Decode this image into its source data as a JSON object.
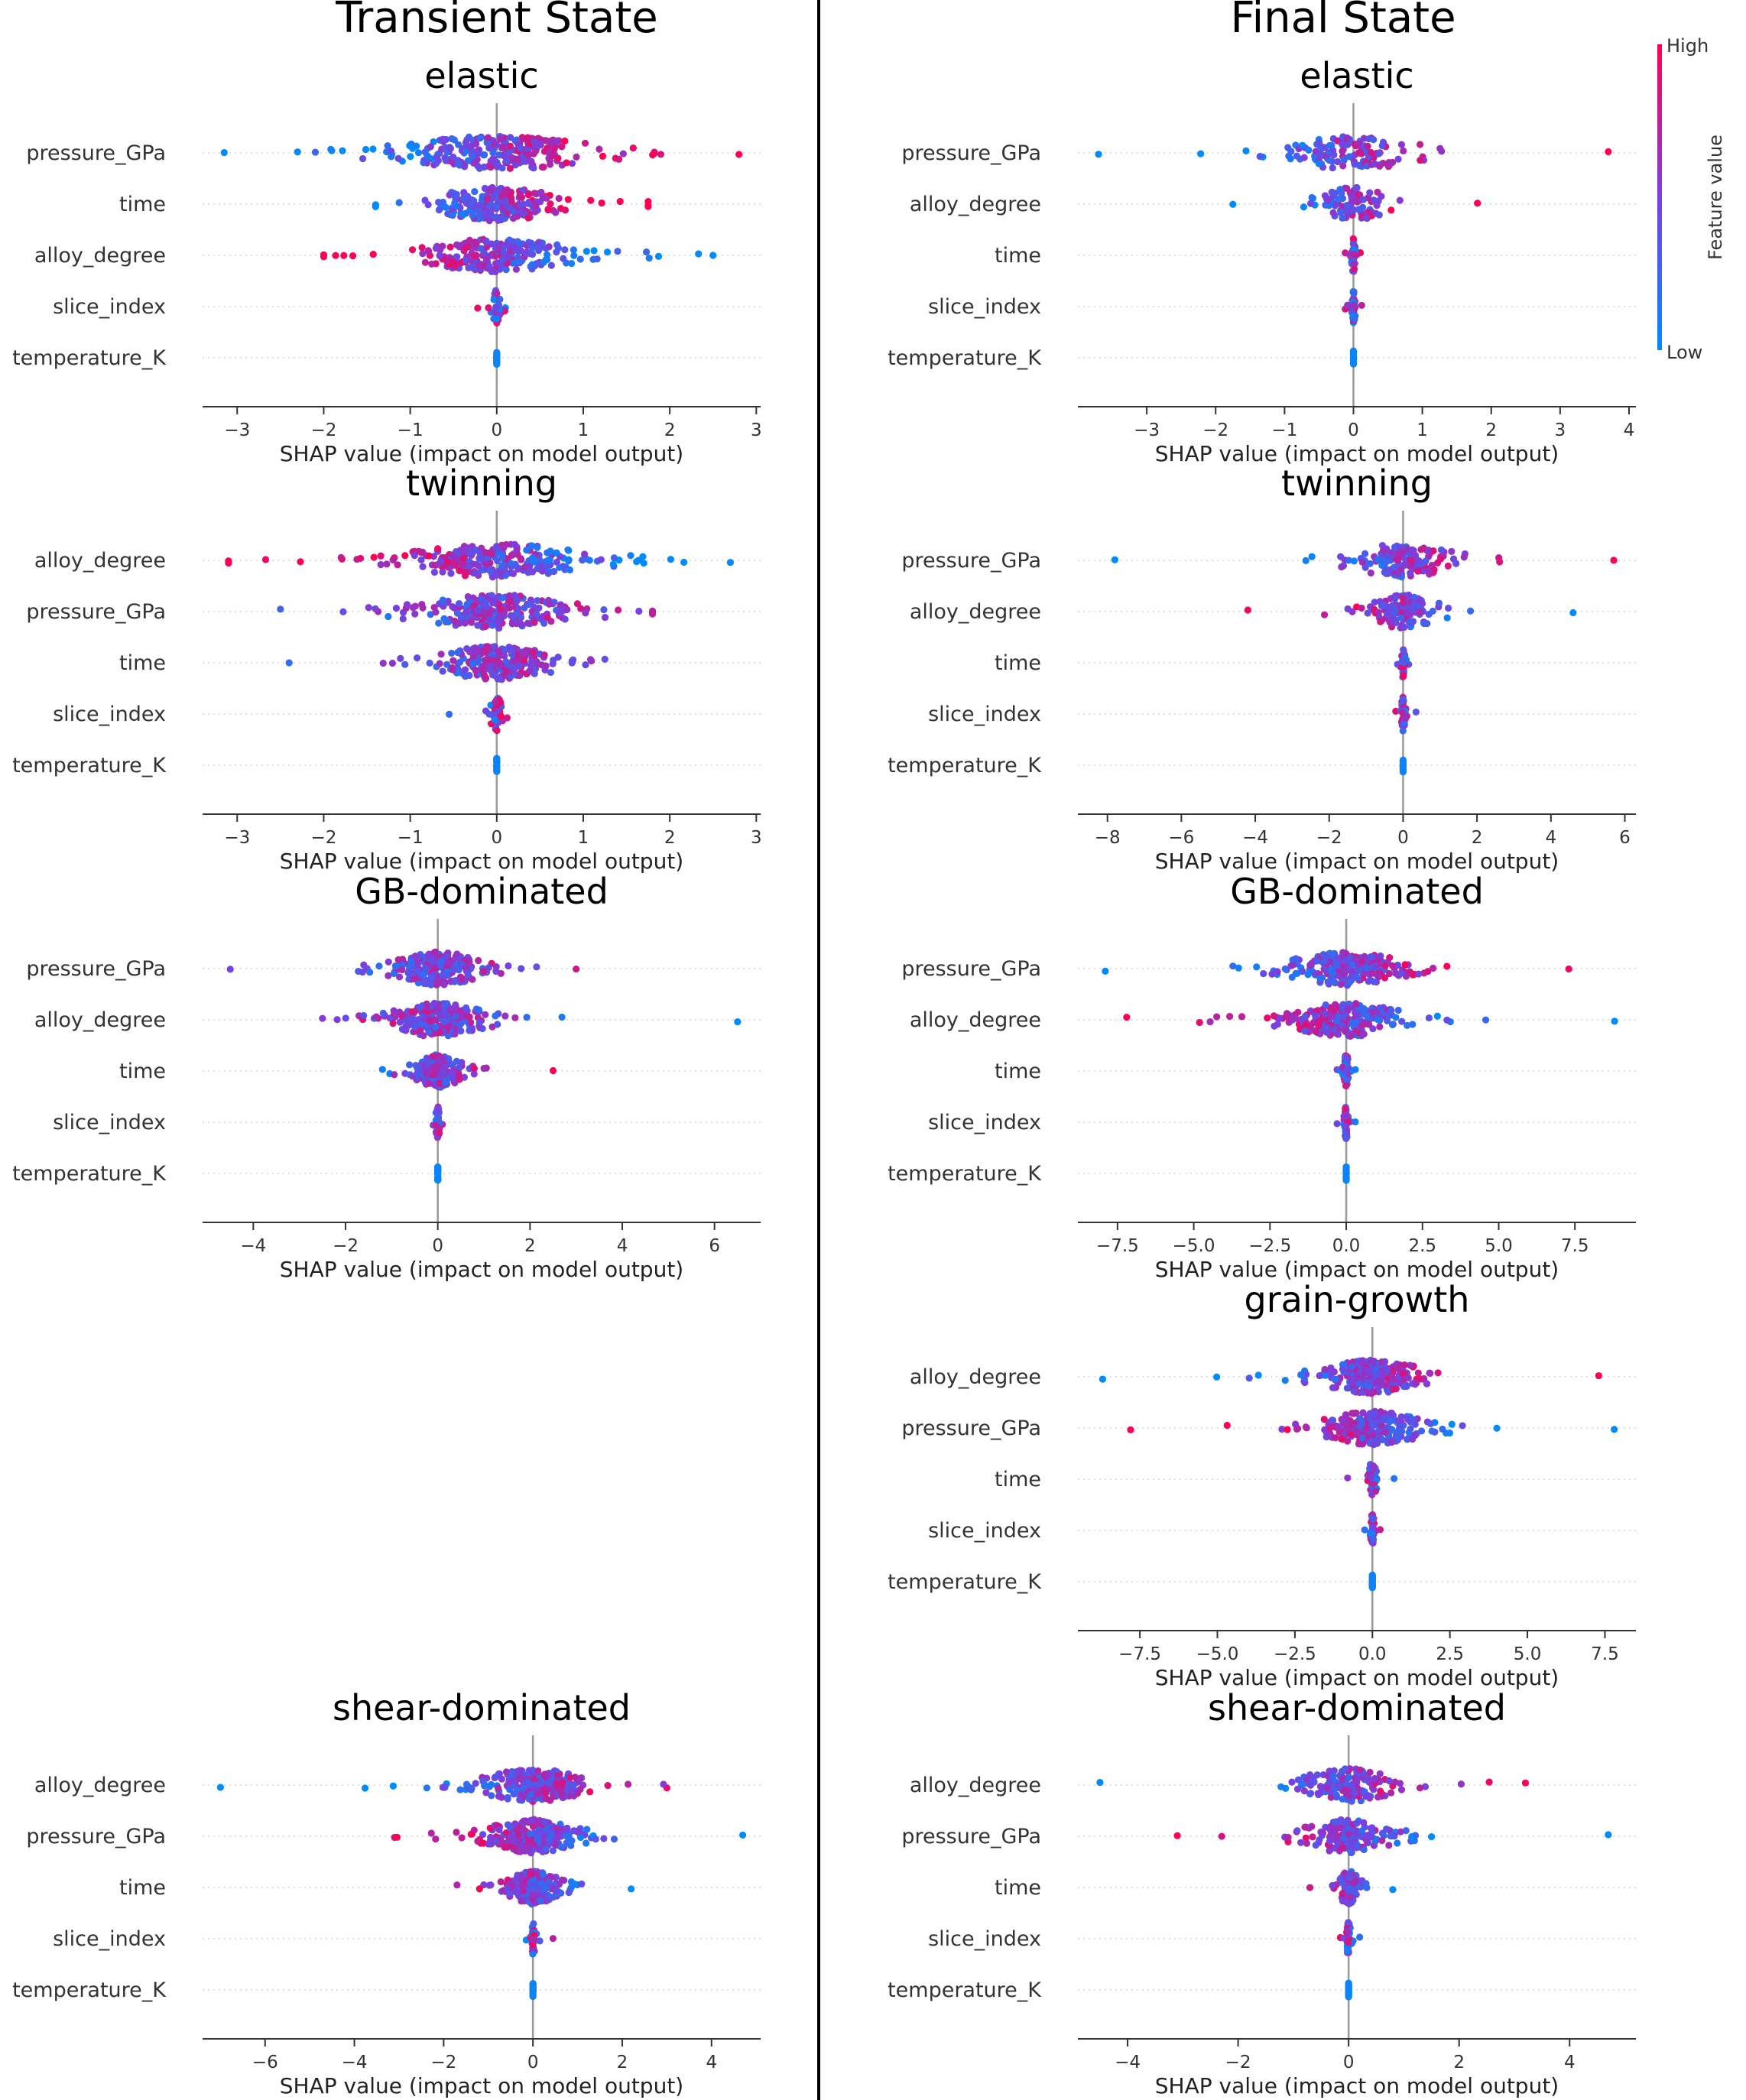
{
  "figure": {
    "column_titles": [
      "Transient State",
      "Final State"
    ],
    "colorbar": {
      "high_label": "High",
      "low_label": "Low",
      "title": "Feature value",
      "high_color": "#ff0052",
      "mid_color": "#7b3fe0",
      "low_color": "#008bfb"
    },
    "axis_xlabel": "SHAP value (impact on model output)"
  },
  "chart_data": [
    {
      "type": "scatter",
      "subtype": "shap_beeswarm",
      "column": "Transient State",
      "title": "elastic",
      "xlabel": "SHAP value (impact on model output)",
      "xlim": [
        -3.4,
        3.05
      ],
      "xticks": [
        -3,
        -2,
        -1,
        0,
        1,
        2,
        3
      ],
      "xtick_labels": [
        "−3",
        "−2",
        "−1",
        "0",
        "1",
        "2",
        "3"
      ],
      "features": [
        {
          "name": "pressure_GPa",
          "min": -3.15,
          "max": 2.8,
          "spread": 1.1,
          "bias": 0.5,
          "n": 260
        },
        {
          "name": "time",
          "min": -1.4,
          "max": 1.75,
          "spread": 0.7,
          "bias": 0.45,
          "n": 220
        },
        {
          "name": "alloy_degree",
          "min": -2.0,
          "max": 2.5,
          "spread": 0.8,
          "bias": -0.5,
          "n": 230
        },
        {
          "name": "slice_index",
          "min": -0.22,
          "max": 0.1,
          "spread": 0.06,
          "bias": 0,
          "n": 40
        },
        {
          "name": "temperature_K",
          "min": 0,
          "max": 0,
          "spread": 0,
          "bias": 0,
          "n": 30
        }
      ]
    },
    {
      "type": "scatter",
      "subtype": "shap_beeswarm",
      "column": "Transient State",
      "title": "twinning",
      "xlabel": "SHAP value (impact on model output)",
      "xlim": [
        -3.4,
        3.05
      ],
      "xticks": [
        -3,
        -2,
        -1,
        0,
        1,
        2,
        3
      ],
      "xtick_labels": [
        "−3",
        "−2",
        "−1",
        "0",
        "1",
        "2",
        "3"
      ],
      "features": [
        {
          "name": "alloy_degree",
          "min": -3.1,
          "max": 2.7,
          "spread": 1.0,
          "bias": -0.45,
          "n": 260
        },
        {
          "name": "pressure_GPa",
          "min": -2.5,
          "max": 1.8,
          "spread": 0.9,
          "bias": 0.1,
          "n": 230
        },
        {
          "name": "time",
          "min": -2.4,
          "max": 1.25,
          "spread": 0.65,
          "bias": 0.2,
          "n": 220
        },
        {
          "name": "slice_index",
          "min": -0.55,
          "max": 0.12,
          "spread": 0.07,
          "bias": 0,
          "n": 40
        },
        {
          "name": "temperature_K",
          "min": 0,
          "max": 0,
          "spread": 0,
          "bias": 0,
          "n": 30
        }
      ]
    },
    {
      "type": "scatter",
      "subtype": "shap_beeswarm",
      "column": "Transient State",
      "title": "GB-dominated",
      "xlabel": "SHAP value (impact on model output)",
      "xlim": [
        -5.1,
        7.0
      ],
      "xticks": [
        -4,
        -2,
        0,
        2,
        4,
        6
      ],
      "xtick_labels": [
        "−4",
        "−2",
        "0",
        "2",
        "4",
        "6"
      ],
      "features": [
        {
          "name": "pressure_GPa",
          "min": -4.5,
          "max": 3.0,
          "spread": 0.9,
          "bias": 0.1,
          "n": 240
        },
        {
          "name": "alloy_degree",
          "min": -2.5,
          "max": 6.5,
          "spread": 1.0,
          "bias": -0.3,
          "n": 240
        },
        {
          "name": "time",
          "min": -1.2,
          "max": 2.5,
          "spread": 0.5,
          "bias": 0.2,
          "n": 200
        },
        {
          "name": "slice_index",
          "min": -0.1,
          "max": 0.1,
          "spread": 0.04,
          "bias": 0,
          "n": 40
        },
        {
          "name": "temperature_K",
          "min": 0,
          "max": 0,
          "spread": 0,
          "bias": 0,
          "n": 30
        }
      ]
    },
    {
      "type": "scatter",
      "subtype": "shap_beeswarm",
      "column": "Transient State",
      "title": "shear-dominated",
      "xlabel": "SHAP value (impact on model output)",
      "xlim": [
        -7.4,
        5.1
      ],
      "xticks": [
        -6,
        -4,
        -2,
        0,
        2,
        4
      ],
      "xtick_labels": [
        "−6",
        "−4",
        "−2",
        "0",
        "2",
        "4"
      ],
      "features": [
        {
          "name": "alloy_degree",
          "min": -7.0,
          "max": 3.0,
          "spread": 1.1,
          "bias": 0.5,
          "n": 250
        },
        {
          "name": "pressure_GPa",
          "min": -3.1,
          "max": 4.7,
          "spread": 1.0,
          "bias": -0.5,
          "n": 240
        },
        {
          "name": "time",
          "min": -1.7,
          "max": 2.2,
          "spread": 0.6,
          "bias": -0.3,
          "n": 210
        },
        {
          "name": "slice_index",
          "min": -0.15,
          "max": 0.45,
          "spread": 0.05,
          "bias": 0,
          "n": 40
        },
        {
          "name": "temperature_K",
          "min": 0,
          "max": 0,
          "spread": 0,
          "bias": 0,
          "n": 30
        }
      ]
    },
    {
      "type": "scatter",
      "subtype": "shap_beeswarm",
      "column": "Final State",
      "title": "elastic",
      "xlabel": "SHAP value (impact on model output)",
      "xlim": [
        -4.0,
        4.1
      ],
      "xticks": [
        -3,
        -2,
        -1,
        0,
        1,
        2,
        3,
        4
      ],
      "xtick_labels": [
        "−3",
        "−2",
        "−1",
        "0",
        "1",
        "2",
        "3",
        "4"
      ],
      "features": [
        {
          "name": "pressure_GPa",
          "min": -3.7,
          "max": 3.7,
          "spread": 0.9,
          "bias": 0.6,
          "n": 120
        },
        {
          "name": "alloy_degree",
          "min": -1.75,
          "max": 1.8,
          "spread": 0.5,
          "bias": 0.5,
          "n": 90
        },
        {
          "name": "time",
          "min": -0.12,
          "max": 0.1,
          "spread": 0.03,
          "bias": 0,
          "n": 40
        },
        {
          "name": "slice_index",
          "min": -0.12,
          "max": 0.12,
          "spread": 0.03,
          "bias": 0,
          "n": 40
        },
        {
          "name": "temperature_K",
          "min": 0,
          "max": 0,
          "spread": 0,
          "bias": 0,
          "n": 30
        }
      ]
    },
    {
      "type": "scatter",
      "subtype": "shap_beeswarm",
      "column": "Final State",
      "title": "twinning",
      "xlabel": "SHAP value (impact on model output)",
      "xlim": [
        -8.8,
        6.3
      ],
      "xticks": [
        -8,
        -6,
        -4,
        -2,
        0,
        2,
        4,
        6
      ],
      "xtick_labels": [
        "−8",
        "−6",
        "−4",
        "−2",
        "0",
        "2",
        "4",
        "6"
      ],
      "features": [
        {
          "name": "pressure_GPa",
          "min": -7.8,
          "max": 5.7,
          "spread": 1.3,
          "bias": 0.6,
          "n": 150
        },
        {
          "name": "alloy_degree",
          "min": -4.2,
          "max": 4.6,
          "spread": 0.9,
          "bias": -0.5,
          "n": 120
        },
        {
          "name": "time",
          "min": -0.15,
          "max": 0.15,
          "spread": 0.04,
          "bias": 0,
          "n": 40
        },
        {
          "name": "slice_index",
          "min": -0.2,
          "max": 0.35,
          "spread": 0.05,
          "bias": 0,
          "n": 40
        },
        {
          "name": "temperature_K",
          "min": 0,
          "max": 0,
          "spread": 0,
          "bias": 0,
          "n": 30
        }
      ]
    },
    {
      "type": "scatter",
      "subtype": "shap_beeswarm",
      "column": "Final State",
      "title": "GB-dominated",
      "xlabel": "SHAP value (impact on model output)",
      "xlim": [
        -8.8,
        9.5
      ],
      "xticks": [
        -7.5,
        -5.0,
        -2.5,
        0.0,
        2.5,
        5.0,
        7.5
      ],
      "xtick_labels": [
        "−7.5",
        "−5.0",
        "−2.5",
        "0.0",
        "2.5",
        "5.0",
        "7.5"
      ],
      "features": [
        {
          "name": "pressure_GPa",
          "min": -7.9,
          "max": 7.3,
          "spread": 1.8,
          "bias": 0.5,
          "n": 240
        },
        {
          "name": "alloy_degree",
          "min": -7.2,
          "max": 8.8,
          "spread": 1.8,
          "bias": -0.5,
          "n": 240
        },
        {
          "name": "time",
          "min": -0.3,
          "max": 0.3,
          "spread": 0.08,
          "bias": 0,
          "n": 50
        },
        {
          "name": "slice_index",
          "min": -0.3,
          "max": 0.3,
          "spread": 0.06,
          "bias": 0,
          "n": 50
        },
        {
          "name": "temperature_K",
          "min": 0,
          "max": 0,
          "spread": 0,
          "bias": 0,
          "n": 30
        }
      ]
    },
    {
      "type": "scatter",
      "subtype": "shap_beeswarm",
      "column": "Final State",
      "title": "grain-growth",
      "xlabel": "SHAP value (impact on model output)",
      "xlim": [
        -9.5,
        8.5
      ],
      "xticks": [
        -7.5,
        -5.0,
        -2.5,
        0.0,
        2.5,
        5.0,
        7.5
      ],
      "xtick_labels": [
        "−7.5",
        "−5.0",
        "−2.5",
        "0.0",
        "2.5",
        "5.0",
        "7.5"
      ],
      "features": [
        {
          "name": "alloy_degree",
          "min": -8.7,
          "max": 7.3,
          "spread": 1.6,
          "bias": 0.5,
          "n": 240
        },
        {
          "name": "pressure_GPa",
          "min": -7.8,
          "max": 7.8,
          "spread": 1.6,
          "bias": -0.5,
          "n": 240
        },
        {
          "name": "time",
          "min": -0.8,
          "max": 0.7,
          "spread": 0.15,
          "bias": 0,
          "n": 60
        },
        {
          "name": "slice_index",
          "min": -0.25,
          "max": 0.25,
          "spread": 0.06,
          "bias": 0,
          "n": 40
        },
        {
          "name": "temperature_K",
          "min": 0,
          "max": 0,
          "spread": 0,
          "bias": 0,
          "n": 30
        }
      ]
    },
    {
      "type": "scatter",
      "subtype": "shap_beeswarm",
      "column": "Final State",
      "title": "shear-dominated",
      "xlabel": "SHAP value (impact on model output)",
      "xlim": [
        -4.9,
        5.2
      ],
      "xticks": [
        -4,
        -2,
        0,
        2,
        4
      ],
      "xtick_labels": [
        "−4",
        "−2",
        "0",
        "2",
        "4"
      ],
      "features": [
        {
          "name": "alloy_degree",
          "min": -4.5,
          "max": 3.2,
          "spread": 0.8,
          "bias": 0.5,
          "n": 160
        },
        {
          "name": "pressure_GPa",
          "min": -3.1,
          "max": 4.7,
          "spread": 0.8,
          "bias": -0.5,
          "n": 160
        },
        {
          "name": "time",
          "min": -0.7,
          "max": 0.8,
          "spread": 0.2,
          "bias": -0.3,
          "n": 70
        },
        {
          "name": "slice_index",
          "min": -0.15,
          "max": 0.2,
          "spread": 0.04,
          "bias": 0,
          "n": 40
        },
        {
          "name": "temperature_K",
          "min": 0,
          "max": 0,
          "spread": 0,
          "bias": 0,
          "n": 30
        }
      ]
    }
  ]
}
